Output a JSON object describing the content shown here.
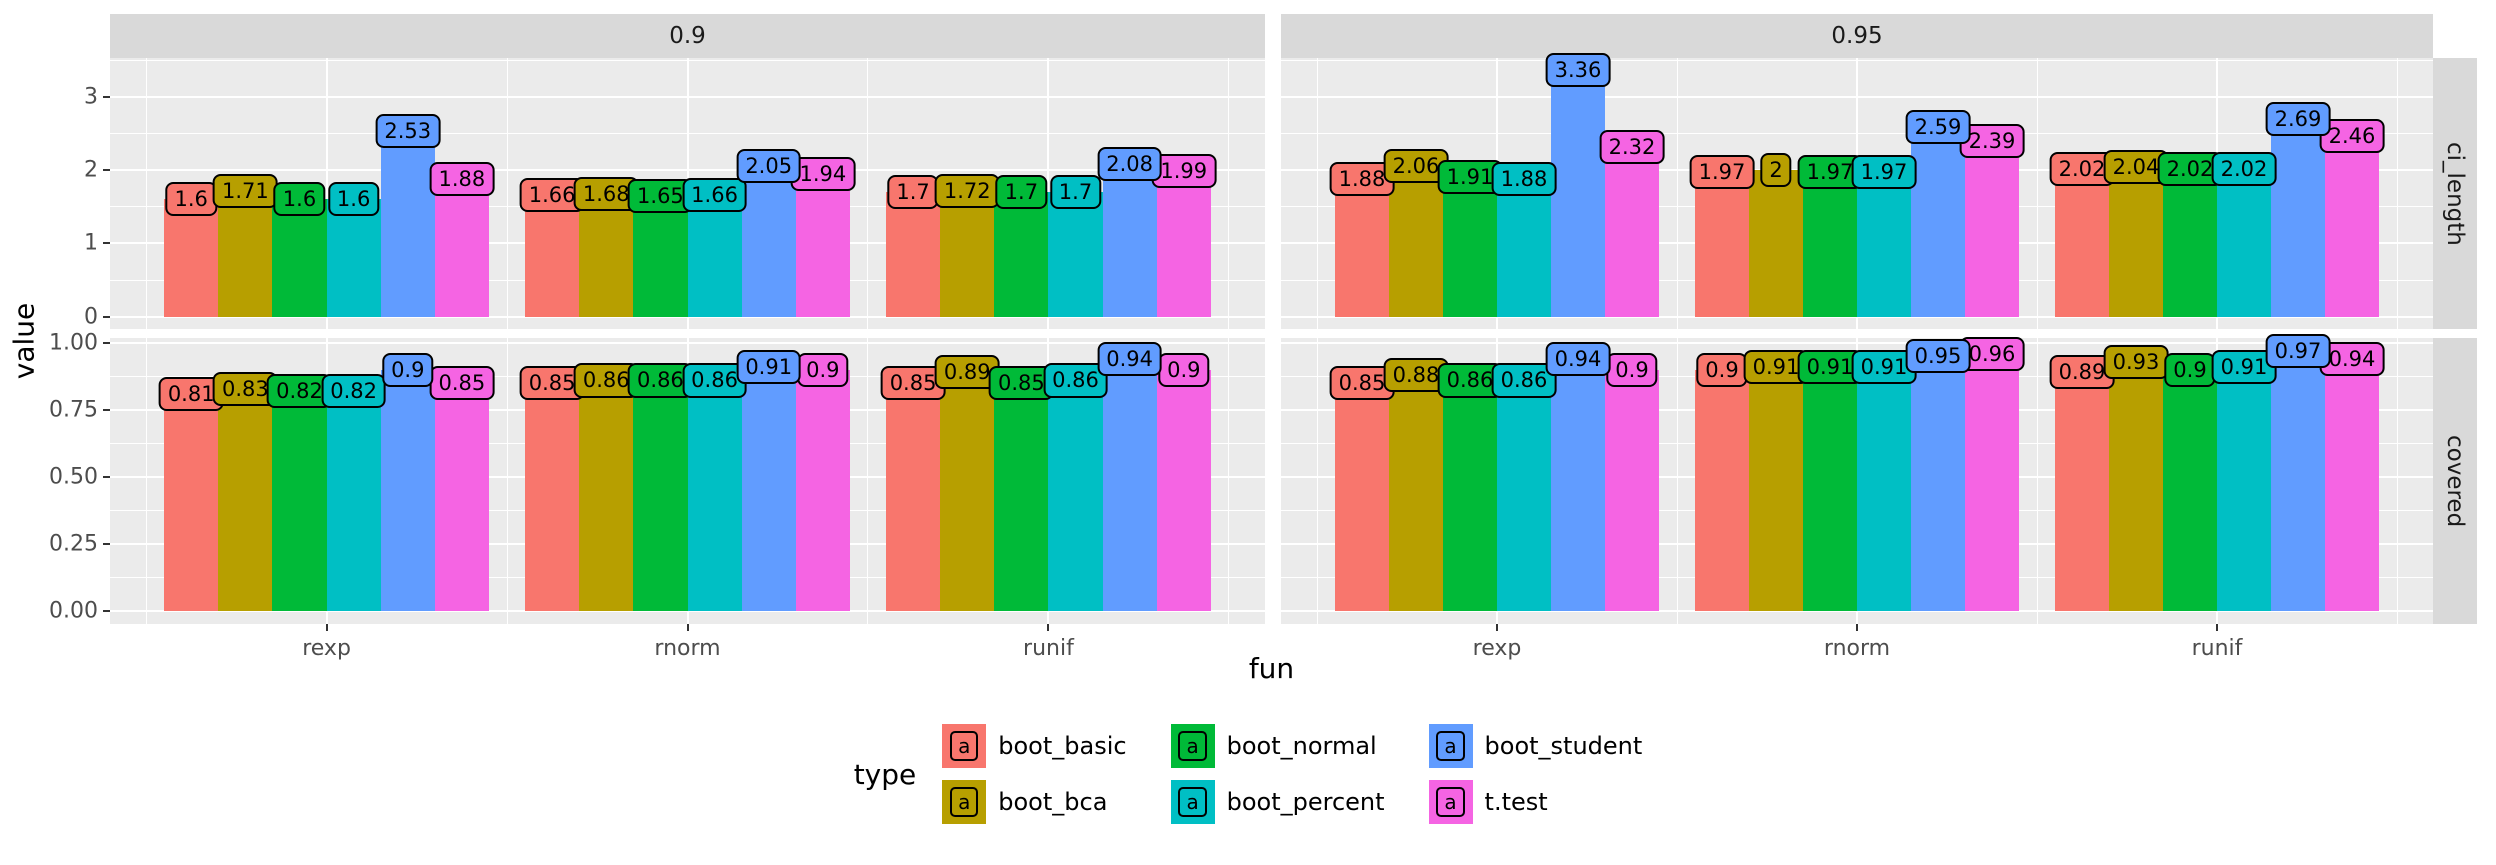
{
  "figure": {
    "background": "#FFFFFF",
    "panel_background": "#EBEBEB",
    "strip_background": "#D9D9D9",
    "grid_color": "#FFFFFF",
    "axis_text_color": "#4D4D4D",
    "strip_text_color": "#1A1A1A"
  },
  "axes": {
    "x_title": "fun",
    "y_title": "value"
  },
  "legend": {
    "title": "type",
    "key_glyph": "a",
    "items": [
      {
        "label": "boot_basic",
        "color": "#F8766D"
      },
      {
        "label": "boot_bca",
        "color": "#B79F00"
      },
      {
        "label": "boot_normal",
        "color": "#00BA38"
      },
      {
        "label": "boot_percent",
        "color": "#00BFC4"
      },
      {
        "label": "boot_student",
        "color": "#619CFF"
      },
      {
        "label": "t.test",
        "color": "#F564E3"
      }
    ]
  },
  "chart_data": {
    "type": "bar",
    "title": "",
    "xlabel": "fun",
    "ylabel": "value",
    "grid": true,
    "legend_position": "bottom",
    "facet_cols": [
      "0.9",
      "0.95"
    ],
    "facet_rows": [
      "ci_length",
      "covered"
    ],
    "categories": [
      "rexp",
      "rnorm",
      "runif"
    ],
    "series_names": [
      "boot_basic",
      "boot_bca",
      "boot_normal",
      "boot_percent",
      "boot_student",
      "t.test"
    ],
    "series_colors": [
      "#F8766D",
      "#B79F00",
      "#00BA38",
      "#00BFC4",
      "#619CFF",
      "#F564E3"
    ],
    "rows_config": [
      {
        "label": "ci_length",
        "ylim": [
          -0.168,
          3.528
        ],
        "ticks": [
          {
            "v": 0,
            "t": "0"
          },
          {
            "v": 1,
            "t": "1"
          },
          {
            "v": 2,
            "t": "2"
          },
          {
            "v": 3,
            "t": "3"
          }
        ],
        "minor": [
          0.5,
          1.5,
          2.5,
          3.5
        ]
      },
      {
        "label": "covered",
        "ylim": [
          -0.0485,
          1.0185
        ],
        "ticks": [
          {
            "v": 0,
            "t": "0.00"
          },
          {
            "v": 0.25,
            "t": "0.25"
          },
          {
            "v": 0.5,
            "t": "0.50"
          },
          {
            "v": 0.75,
            "t": "0.75"
          },
          {
            "v": 1,
            "t": "1.00"
          }
        ],
        "minor": [
          0.125,
          0.375,
          0.625,
          0.875
        ]
      }
    ],
    "values": {
      "ci_length": {
        "0.9": {
          "rexp": [
            "1.6",
            "1.71",
            "1.6",
            "1.6",
            "2.53",
            "1.88"
          ],
          "rnorm": [
            "1.66",
            "1.68",
            "1.65",
            "1.66",
            "2.05",
            "1.94"
          ],
          "runif": [
            "1.7",
            "1.72",
            "1.7",
            "1.7",
            "2.08",
            "1.99"
          ]
        },
        "0.95": {
          "rexp": [
            "1.88",
            "2.06",
            "1.91",
            "1.88",
            "3.36",
            "2.32"
          ],
          "rnorm": [
            "1.97",
            "2",
            "1.97",
            "1.97",
            "2.59",
            "2.39"
          ],
          "runif": [
            "2.02",
            "2.04",
            "2.02",
            "2.02",
            "2.69",
            "2.46"
          ]
        }
      },
      "covered": {
        "0.9": {
          "rexp": [
            "0.81",
            "0.83",
            "0.82",
            "0.82",
            "0.9",
            "0.85"
          ],
          "rnorm": [
            "0.85",
            "0.86",
            "0.86",
            "0.86",
            "0.91",
            "0.9"
          ],
          "runif": [
            "0.85",
            "0.89",
            "0.85",
            "0.86",
            "0.94",
            "0.9"
          ]
        },
        "0.95": {
          "rexp": [
            "0.85",
            "0.88",
            "0.86",
            "0.86",
            "0.94",
            "0.9"
          ],
          "rnorm": [
            "0.9",
            "0.91",
            "0.91",
            "0.91",
            "0.95",
            "0.96"
          ],
          "runif": [
            "0.89",
            "0.93",
            "0.9",
            "0.91",
            "0.97",
            "0.94"
          ]
        }
      }
    }
  }
}
